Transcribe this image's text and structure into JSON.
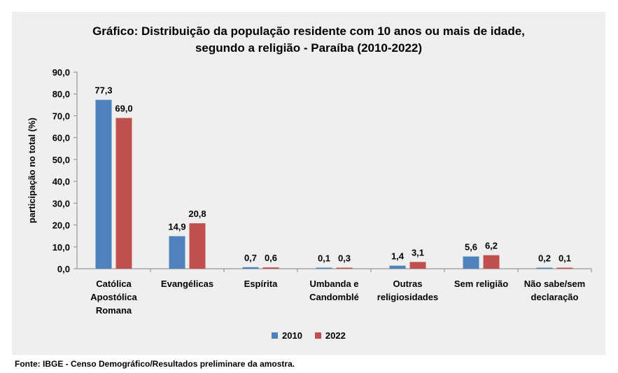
{
  "chart_data": {
    "type": "bar",
    "title_line1": "Gráfico: Distribuição da população residente com 10 anos ou mais de idade,",
    "title_line2": "segundo a  religião - Paraíba  (2010-2022)",
    "ylabel": "participação no total (%)",
    "ylim": [
      0,
      90
    ],
    "yticks": [
      "0,0",
      "10,0",
      "20,0",
      "30,0",
      "40,0",
      "50,0",
      "60,0",
      "70,0",
      "80,0",
      "90,0"
    ],
    "categories": [
      [
        "Católica",
        "Apostólica",
        "Romana"
      ],
      [
        "Evangélicas"
      ],
      [
        "Espírita"
      ],
      [
        "Umbanda e",
        "Candomblé"
      ],
      [
        "Outras",
        "religiosidades"
      ],
      [
        "Sem religião"
      ],
      [
        "Não sabe/sem",
        "declaração"
      ]
    ],
    "series": [
      {
        "name": "2010",
        "color": "#4f81bd",
        "values": [
          77.3,
          14.9,
          0.7,
          0.1,
          1.4,
          5.6,
          0.2
        ],
        "labels": [
          "77,3",
          "14,9",
          "0,7",
          "0,1",
          "1,4",
          "5,6",
          "0,2"
        ]
      },
      {
        "name": "2022",
        "color": "#c0504d",
        "values": [
          69.0,
          20.8,
          0.6,
          0.3,
          3.1,
          6.2,
          0.1
        ],
        "labels": [
          "69,0",
          "20,8",
          "0,6",
          "0,3",
          "3,1",
          "6,2",
          "0,1"
        ]
      }
    ],
    "grid": false,
    "legend": "bottom"
  },
  "footer": "Fonte: IBGE - Censo Demográfico/Resultados preliminare da amostra."
}
